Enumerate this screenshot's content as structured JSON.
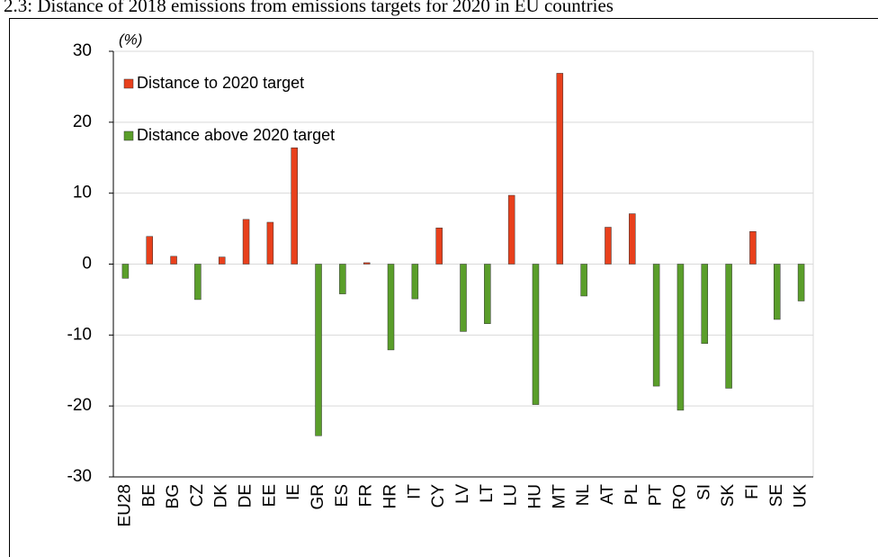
{
  "chart_data": {
    "type": "bar",
    "title": "2.3: Distance of 2018 emissions from emissions targets for 2020 in EU countries",
    "y_label": "(%)",
    "categories": [
      "EU28",
      "BE",
      "BG",
      "CZ",
      "DK",
      "DE",
      "EE",
      "IE",
      "GR",
      "ES",
      "FR",
      "HR",
      "IT",
      "CY",
      "LV",
      "LT",
      "LU",
      "HU",
      "MT",
      "NL",
      "AT",
      "PL",
      "PT",
      "RO",
      "SI",
      "SK",
      "FI",
      "SE",
      "UK"
    ],
    "series": [
      {
        "name": "Distance to 2020 target",
        "color": "#e8401c",
        "values": [
          null,
          3.9,
          1.1,
          null,
          1.0,
          6.3,
          5.9,
          16.4,
          null,
          null,
          0.2,
          null,
          null,
          5.1,
          null,
          null,
          9.7,
          null,
          26.9,
          null,
          5.2,
          7.1,
          null,
          null,
          null,
          null,
          4.6,
          null,
          null
        ]
      },
      {
        "name": "Distance above 2020 target",
        "color": "#5a9e2a",
        "values": [
          -2.0,
          null,
          null,
          -5.0,
          null,
          null,
          null,
          null,
          -24.2,
          -4.2,
          null,
          -12.1,
          -4.9,
          null,
          -9.5,
          -8.4,
          null,
          -19.8,
          null,
          -4.5,
          null,
          null,
          -17.2,
          -20.6,
          -11.2,
          -17.5,
          null,
          -7.8,
          -5.2
        ]
      }
    ],
    "ylim": [
      -30,
      30
    ],
    "yticks": [
      -30,
      -20,
      -10,
      0,
      10,
      20,
      30
    ],
    "grid": true,
    "legend": "top-left"
  }
}
